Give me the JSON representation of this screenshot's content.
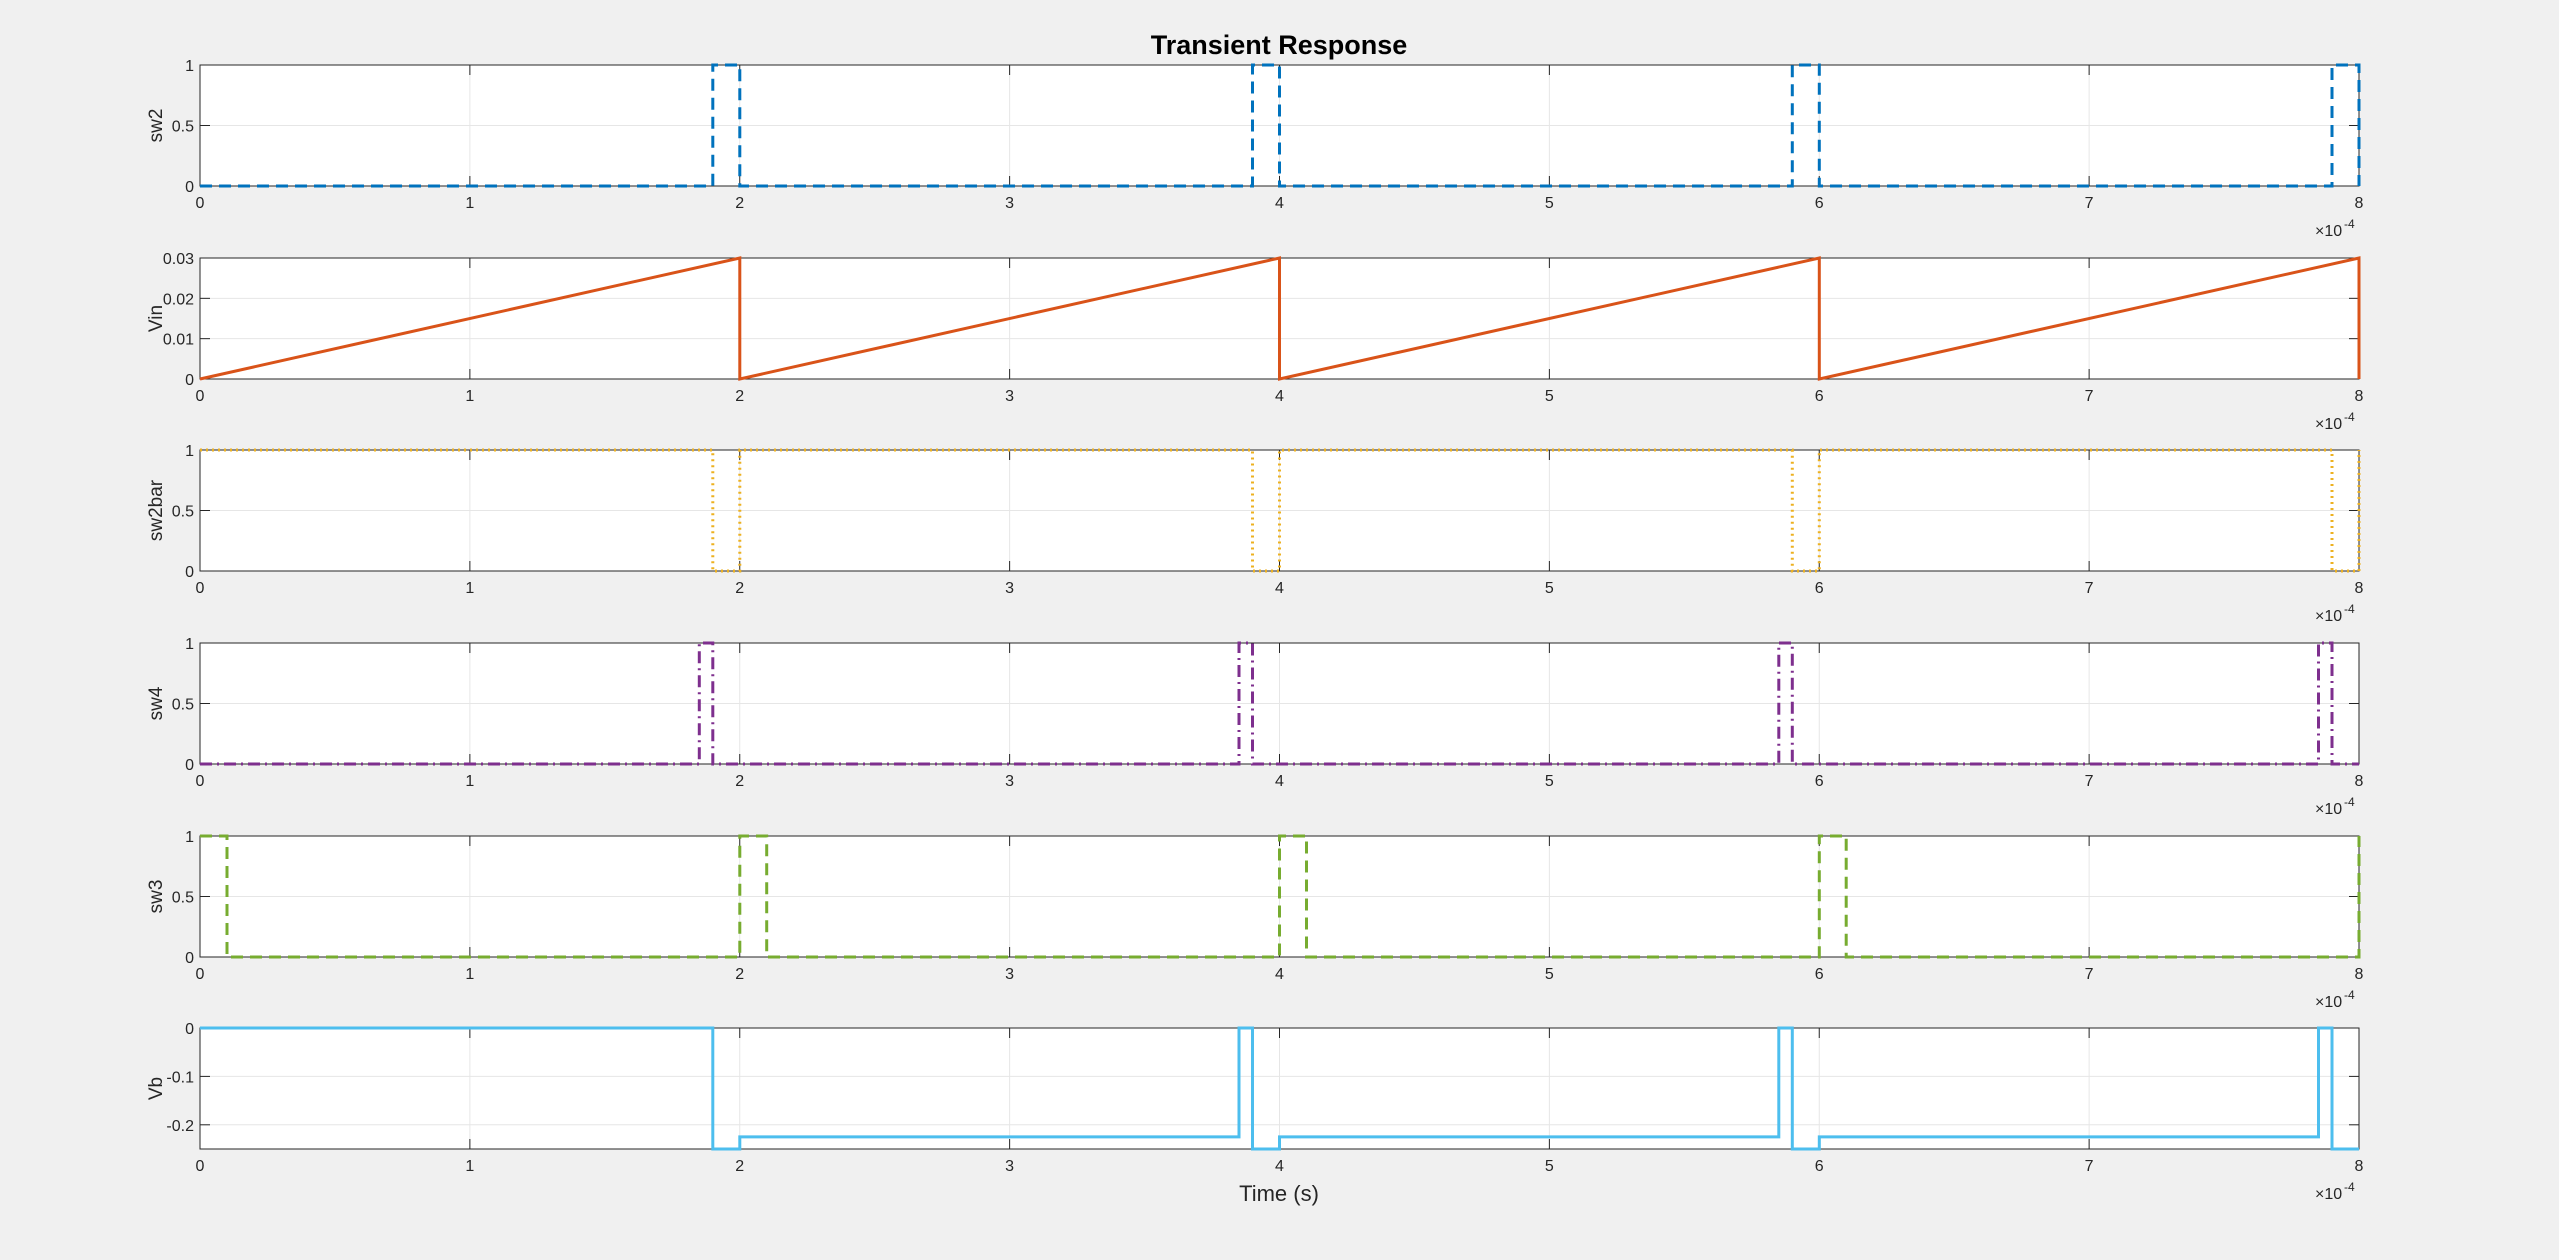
{
  "chart_data": {
    "type": "line",
    "title": "Transient Response",
    "xlabel": "Time (s)",
    "x_exponent_base": "×10",
    "x_exponent_power": "-4",
    "xlim": [
      0,
      8
    ],
    "x_ticks": [
      "0",
      "1",
      "2",
      "3",
      "4",
      "5",
      "6",
      "7",
      "8"
    ],
    "grid": true,
    "subplots": [
      {
        "name": "sw2",
        "ylabel": "sw2",
        "color": "#0072BD",
        "line_style": "dashed",
        "ylim": [
          0,
          1
        ],
        "y_ticks": [
          "0",
          "0.5",
          "1"
        ],
        "x": [
          0,
          1.9,
          1.9,
          2.0,
          2.0,
          3.9,
          3.9,
          4.0,
          4.0,
          5.9,
          5.9,
          6.0,
          6.0,
          7.9,
          7.9,
          8.0,
          8.0
        ],
        "y": [
          0,
          0,
          1,
          1,
          0,
          0,
          1,
          1,
          0,
          0,
          1,
          1,
          0,
          0,
          1,
          1,
          0
        ]
      },
      {
        "name": "Vin",
        "ylabel": "Vin",
        "color": "#D95319",
        "line_style": "solid",
        "ylim": [
          0,
          0.03
        ],
        "y_ticks": [
          "0",
          "0.01",
          "0.02",
          "0.03"
        ],
        "x": [
          0,
          2.0,
          2.0,
          4.0,
          4.0,
          6.0,
          6.0,
          8.0,
          8.0
        ],
        "y": [
          0,
          0.03,
          0,
          0.03,
          0,
          0.03,
          0,
          0.03,
          0
        ]
      },
      {
        "name": "sw2bar",
        "ylabel": "sw2bar",
        "color": "#EDB120",
        "line_style": "dotted",
        "ylim": [
          0,
          1
        ],
        "y_ticks": [
          "0",
          "0.5",
          "1"
        ],
        "x": [
          0,
          1.9,
          1.9,
          2.0,
          2.0,
          3.9,
          3.9,
          4.0,
          4.0,
          5.9,
          5.9,
          6.0,
          6.0,
          7.9,
          7.9,
          8.0,
          8.0
        ],
        "y": [
          1,
          1,
          0,
          0,
          1,
          1,
          0,
          0,
          1,
          1,
          0,
          0,
          1,
          1,
          0,
          0,
          1
        ]
      },
      {
        "name": "sw4",
        "ylabel": "sw4",
        "color": "#7E2F8E",
        "line_style": "dashdot",
        "ylim": [
          0,
          1
        ],
        "y_ticks": [
          "0",
          "0.5",
          "1"
        ],
        "x": [
          0,
          1.85,
          1.85,
          1.9,
          1.9,
          3.85,
          3.85,
          3.9,
          3.9,
          5.85,
          5.85,
          5.9,
          5.9,
          7.85,
          7.85,
          7.9,
          7.9,
          8.0
        ],
        "y": [
          0,
          0,
          1,
          1,
          0,
          0,
          1,
          1,
          0,
          0,
          1,
          1,
          0,
          0,
          1,
          1,
          0,
          0
        ]
      },
      {
        "name": "sw3",
        "ylabel": "sw3",
        "color": "#77AC30",
        "line_style": "dashed",
        "ylim": [
          0,
          1
        ],
        "y_ticks": [
          "0",
          "0.5",
          "1"
        ],
        "x": [
          0,
          0.1,
          0.1,
          2.0,
          2.0,
          2.1,
          2.1,
          4.0,
          4.0,
          4.1,
          4.1,
          6.0,
          6.0,
          6.1,
          6.1,
          8.0,
          8.0
        ],
        "y": [
          1,
          1,
          0,
          0,
          1,
          1,
          0,
          0,
          1,
          1,
          0,
          0,
          1,
          1,
          0,
          0,
          1
        ]
      },
      {
        "name": "Vb",
        "ylabel": "Vb",
        "color": "#4DBEEE",
        "line_style": "solid",
        "ylim": [
          -0.25,
          0
        ],
        "y_ticks": [
          "0",
          "-0.1",
          "-0.2"
        ],
        "y_tick_values": [
          0,
          -0.1,
          -0.2
        ],
        "x": [
          0,
          1.9,
          1.9,
          2.0,
          2.0,
          3.85,
          3.85,
          3.9,
          3.9,
          4.0,
          4.0,
          5.85,
          5.85,
          5.9,
          5.9,
          6.0,
          6.0,
          7.85,
          7.85,
          7.9,
          7.9,
          8.0
        ],
        "y": [
          0,
          0,
          -0.25,
          -0.25,
          -0.225,
          -0.225,
          0,
          0,
          -0.25,
          -0.25,
          -0.225,
          -0.225,
          0,
          0,
          -0.25,
          -0.25,
          -0.225,
          -0.225,
          0,
          0,
          -0.25,
          -0.25
        ]
      }
    ]
  }
}
